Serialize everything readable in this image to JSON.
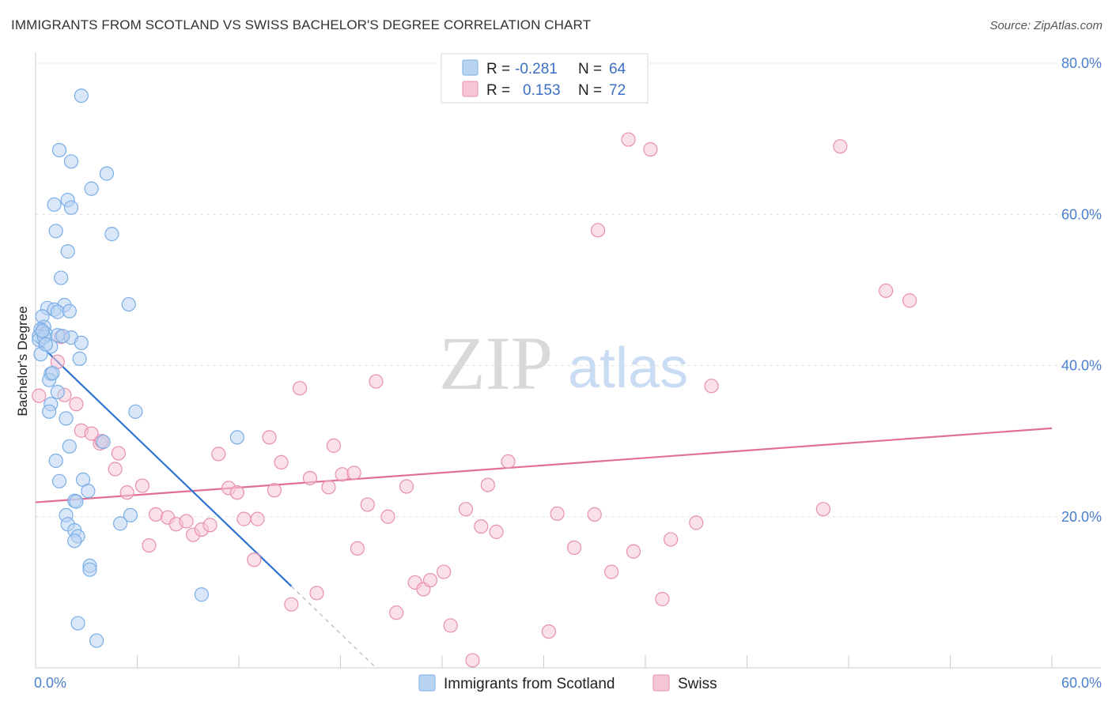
{
  "title": "IMMIGRANTS FROM SCOTLAND VS SWISS BACHELOR'S DEGREE CORRELATION CHART",
  "source": "Source: ZipAtlas.com",
  "watermark": {
    "zip": "ZIP",
    "atlas": "atlas"
  },
  "colors": {
    "blue": "#7aaee6",
    "blue_fill": "#b9d3f3",
    "blue_line": "#2e73d1",
    "pink": "#e88fae",
    "pink_fill": "#f6c6d6",
    "pink_line": "#e06f98",
    "tick": "#4a7fcf",
    "grid": "#e2e2e2"
  },
  "legend": {
    "rows": [
      {
        "r_label": "R =",
        "r_value": "-0.281",
        "n_label": "N =",
        "n_value": "64"
      },
      {
        "r_label": "R =",
        "r_value": "0.153",
        "n_label": "N =",
        "n_value": "72"
      }
    ]
  },
  "bottom_legend": [
    "Immigrants from Scotland",
    "Swiss"
  ],
  "chart_data": {
    "type": "scatter",
    "xlabel": "",
    "ylabel": "Bachelor's Degree",
    "xlim": [
      0,
      60
    ],
    "ylim": [
      0,
      80
    ],
    "x_tick_labels": [
      {
        "value": 0,
        "label": "0.0%"
      },
      {
        "value": 60,
        "label": "60.0%"
      }
    ],
    "y_tick_labels": [
      {
        "value": 20,
        "label": "20.0%"
      },
      {
        "value": 40,
        "label": "40.0%"
      },
      {
        "value": 60,
        "label": "60.0%"
      },
      {
        "value": 80,
        "label": "80.0%"
      }
    ],
    "grid": true,
    "series": [
      {
        "name": "Immigrants from Scotland",
        "color": "#7aaee6",
        "trend": {
          "x": [
            0,
            15.1
          ],
          "y": [
            43.3,
            10.8
          ],
          "dashed_to": {
            "x": 20.1,
            "y": 0
          }
        },
        "points": [
          [
            2.7,
            75.7
          ],
          [
            1.4,
            68.5
          ],
          [
            2.1,
            67.0
          ],
          [
            4.2,
            65.4
          ],
          [
            3.3,
            63.4
          ],
          [
            1.9,
            61.9
          ],
          [
            1.1,
            61.3
          ],
          [
            2.1,
            60.9
          ],
          [
            1.2,
            57.8
          ],
          [
            4.5,
            57.4
          ],
          [
            1.9,
            55.1
          ],
          [
            1.5,
            51.6
          ],
          [
            5.5,
            48.1
          ],
          [
            1.7,
            48.0
          ],
          [
            0.7,
            47.6
          ],
          [
            1.1,
            47.4
          ],
          [
            1.3,
            47.1
          ],
          [
            0.4,
            46.5
          ],
          [
            0.5,
            45.1
          ],
          [
            0.3,
            44.8
          ],
          [
            0.4,
            44.4
          ],
          [
            0.6,
            44.2
          ],
          [
            0.2,
            43.9
          ],
          [
            1.3,
            44.0
          ],
          [
            2.1,
            43.7
          ],
          [
            0.2,
            43.4
          ],
          [
            2.7,
            43.0
          ],
          [
            0.9,
            42.5
          ],
          [
            0.3,
            41.5
          ],
          [
            2.6,
            40.9
          ],
          [
            0.9,
            38.9
          ],
          [
            0.8,
            38.1
          ],
          [
            1.3,
            36.5
          ],
          [
            0.9,
            34.9
          ],
          [
            0.8,
            33.9
          ],
          [
            5.9,
            33.9
          ],
          [
            1.8,
            33.0
          ],
          [
            4.0,
            29.9
          ],
          [
            11.9,
            30.5
          ],
          [
            2.0,
            29.3
          ],
          [
            1.2,
            27.4
          ],
          [
            1.4,
            24.7
          ],
          [
            2.8,
            24.9
          ],
          [
            3.1,
            23.4
          ],
          [
            2.3,
            22.1
          ],
          [
            2.4,
            22.0
          ],
          [
            1.8,
            20.2
          ],
          [
            5.6,
            20.2
          ],
          [
            1.9,
            19.0
          ],
          [
            5.0,
            19.1
          ],
          [
            2.3,
            18.2
          ],
          [
            2.5,
            17.4
          ],
          [
            2.3,
            16.8
          ],
          [
            3.2,
            13.5
          ],
          [
            3.2,
            13.0
          ],
          [
            9.8,
            9.7
          ],
          [
            2.5,
            5.9
          ],
          [
            3.6,
            3.6
          ],
          [
            0.5,
            43.8
          ],
          [
            0.4,
            44.6
          ],
          [
            1.0,
            39.0
          ],
          [
            0.6,
            42.8
          ],
          [
            1.6,
            43.9
          ],
          [
            2.0,
            47.2
          ]
        ]
      },
      {
        "name": "Swiss",
        "color": "#e88fae",
        "trend": {
          "x": [
            0,
            60
          ],
          "y": [
            21.9,
            31.7
          ]
        },
        "points": [
          [
            0.2,
            36.0
          ],
          [
            1.3,
            40.5
          ],
          [
            1.5,
            43.8
          ],
          [
            1.7,
            36.1
          ],
          [
            2.4,
            34.9
          ],
          [
            2.7,
            31.4
          ],
          [
            3.3,
            31.0
          ],
          [
            3.8,
            29.7
          ],
          [
            3.9,
            30.0
          ],
          [
            4.9,
            28.4
          ],
          [
            4.7,
            26.3
          ],
          [
            5.4,
            23.2
          ],
          [
            6.3,
            24.1
          ],
          [
            6.7,
            16.2
          ],
          [
            7.1,
            20.3
          ],
          [
            7.8,
            19.9
          ],
          [
            8.3,
            19.0
          ],
          [
            8.9,
            19.4
          ],
          [
            9.3,
            17.6
          ],
          [
            9.8,
            18.3
          ],
          [
            10.3,
            18.9
          ],
          [
            10.8,
            28.3
          ],
          [
            11.4,
            23.8
          ],
          [
            11.9,
            23.2
          ],
          [
            12.3,
            19.7
          ],
          [
            12.9,
            14.3
          ],
          [
            13.1,
            19.7
          ],
          [
            13.8,
            30.5
          ],
          [
            14.1,
            23.5
          ],
          [
            14.5,
            27.2
          ],
          [
            15.1,
            8.4
          ],
          [
            15.6,
            37.0
          ],
          [
            16.2,
            25.1
          ],
          [
            16.6,
            9.9
          ],
          [
            17.3,
            23.9
          ],
          [
            17.6,
            29.4
          ],
          [
            18.1,
            25.6
          ],
          [
            18.8,
            25.8
          ],
          [
            19.0,
            15.8
          ],
          [
            19.6,
            21.6
          ],
          [
            20.1,
            37.9
          ],
          [
            20.8,
            20.0
          ],
          [
            21.3,
            7.3
          ],
          [
            21.9,
            24.0
          ],
          [
            22.4,
            11.3
          ],
          [
            22.9,
            10.4
          ],
          [
            23.3,
            11.6
          ],
          [
            24.1,
            12.7
          ],
          [
            24.5,
            5.6
          ],
          [
            25.4,
            21.0
          ],
          [
            25.8,
            1.0
          ],
          [
            26.3,
            18.7
          ],
          [
            26.7,
            24.2
          ],
          [
            27.2,
            18.0
          ],
          [
            27.9,
            27.3
          ],
          [
            30.3,
            4.8
          ],
          [
            30.8,
            20.4
          ],
          [
            31.8,
            15.9
          ],
          [
            33.0,
            20.3
          ],
          [
            33.2,
            57.9
          ],
          [
            34.0,
            12.7
          ],
          [
            35.0,
            69.9
          ],
          [
            35.3,
            15.4
          ],
          [
            36.3,
            68.6
          ],
          [
            37.0,
            9.1
          ],
          [
            37.5,
            17.0
          ],
          [
            39.0,
            19.2
          ],
          [
            39.9,
            37.3
          ],
          [
            46.5,
            21.0
          ],
          [
            47.5,
            69.0
          ],
          [
            50.2,
            49.9
          ],
          [
            51.6,
            48.6
          ]
        ]
      }
    ]
  }
}
